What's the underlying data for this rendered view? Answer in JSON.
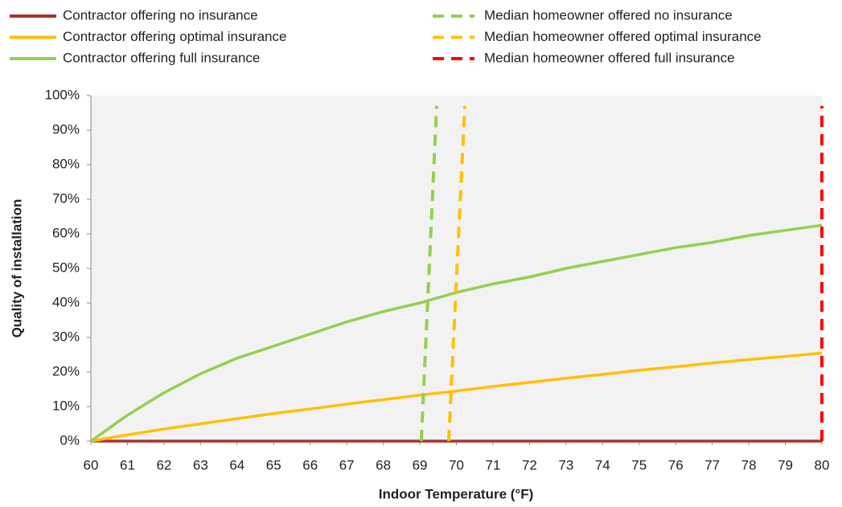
{
  "chart_data": {
    "type": "line",
    "xlabel": "Indoor Temperature (°F)",
    "ylabel": "Quality of installation",
    "xlim": [
      60,
      80
    ],
    "xticks": [
      60,
      61,
      62,
      63,
      64,
      65,
      66,
      67,
      68,
      69,
      70,
      71,
      72,
      73,
      74,
      75,
      76,
      77,
      78,
      79,
      80
    ],
    "ylim": [
      0,
      100
    ],
    "yticks": [
      {
        "value": 0,
        "label": "0%"
      },
      {
        "value": 10,
        "label": "10%"
      },
      {
        "value": 20,
        "label": "20%"
      },
      {
        "value": 30,
        "label": "30%"
      },
      {
        "value": 40,
        "label": "40%"
      },
      {
        "value": 50,
        "label": "50%"
      },
      {
        "value": 60,
        "label": "60%"
      },
      {
        "value": 70,
        "label": "70%"
      },
      {
        "value": 80,
        "label": "80%"
      },
      {
        "value": 90,
        "label": "90%"
      },
      {
        "value": 100,
        "label": "100%"
      }
    ],
    "series": [
      {
        "name": "Contractor offering no insurance",
        "color": "#a5352f",
        "dashed": false,
        "x": [
          60,
          61,
          62,
          63,
          64,
          65,
          66,
          67,
          68,
          69,
          70,
          71,
          72,
          73,
          74,
          75,
          76,
          77,
          78,
          79,
          80
        ],
        "values": [
          0,
          0,
          0,
          0,
          0,
          0,
          0,
          0,
          0,
          0,
          0,
          0,
          0,
          0,
          0,
          0,
          0,
          0,
          0,
          0,
          0
        ]
      },
      {
        "name": "Contractor offering optimal insurance",
        "color": "#ffc000",
        "dashed": false,
        "x": [
          60,
          61,
          62,
          63,
          64,
          65,
          66,
          67,
          68,
          69,
          70,
          71,
          72,
          73,
          74,
          75,
          76,
          77,
          78,
          79,
          80
        ],
        "values": [
          0,
          1.8,
          3.5,
          5,
          6.5,
          8,
          9.3,
          10.7,
          12,
          13.3,
          14.5,
          15.8,
          17,
          18.2,
          19.3,
          20.5,
          21.5,
          22.6,
          23.6,
          24.5,
          25.5
        ]
      },
      {
        "name": "Contractor offering full insurance",
        "color": "#92d050",
        "dashed": false,
        "x": [
          60,
          61,
          62,
          63,
          64,
          65,
          66,
          67,
          68,
          69,
          70,
          71,
          72,
          73,
          74,
          75,
          76,
          77,
          78,
          79,
          80
        ],
        "values": [
          0,
          7.5,
          14,
          19.5,
          24,
          27.5,
          31,
          34.5,
          37.5,
          40,
          43,
          45.5,
          47.5,
          50,
          52,
          54,
          56,
          57.5,
          59.5,
          61,
          62.5
        ]
      },
      {
        "name": "Median homeowner offered no insurance",
        "color": "#92d050",
        "dashed": true,
        "x": [
          69.04,
          69.46
        ],
        "values": [
          0,
          97
        ]
      },
      {
        "name": "Median homeowner offered optimal insurance",
        "color": "#ffc000",
        "dashed": true,
        "x": [
          69.79,
          70.23
        ],
        "values": [
          0,
          97
        ]
      },
      {
        "name": "Median homeowner offered full insurance",
        "color": "#ff0000",
        "dashed": true,
        "x": [
          80,
          80
        ],
        "values": [
          0,
          97
        ]
      }
    ]
  }
}
